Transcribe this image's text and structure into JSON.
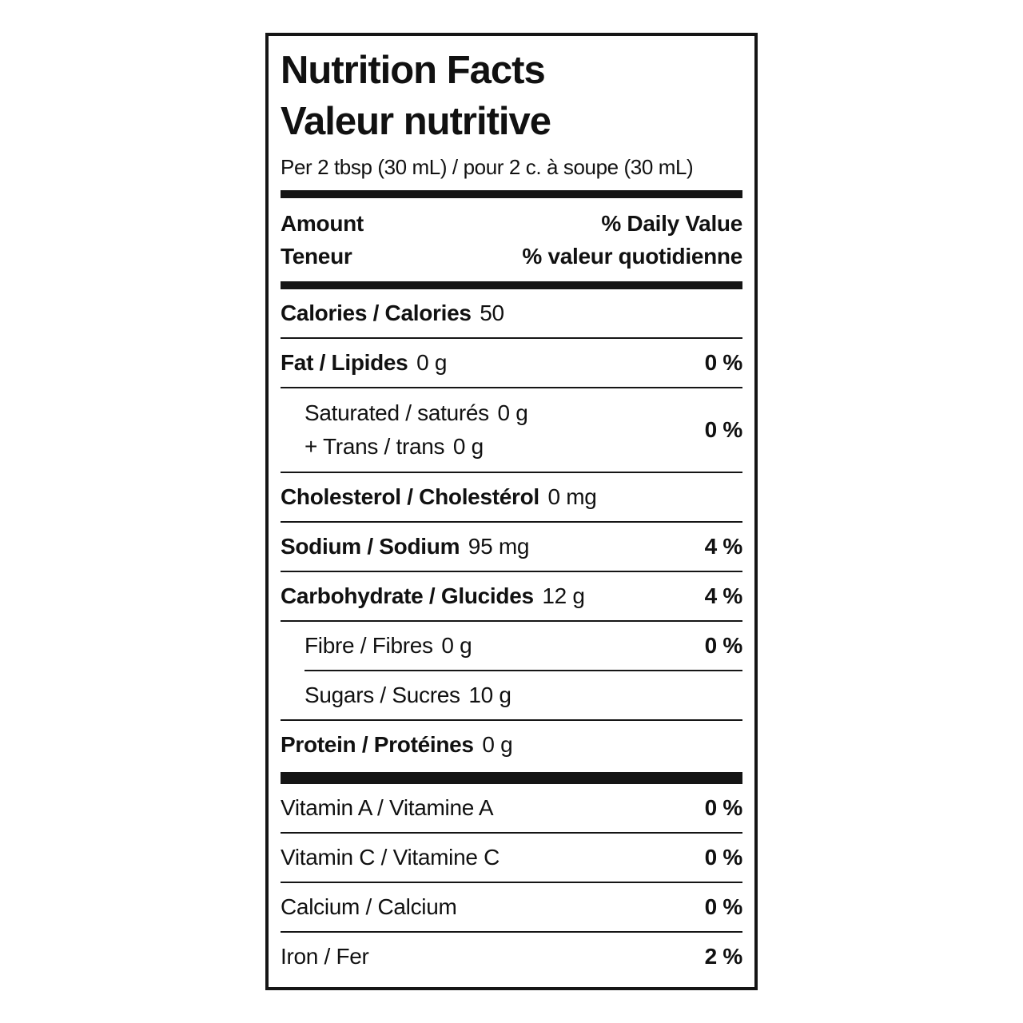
{
  "label": {
    "title_en": "Nutrition Facts",
    "title_fr": "Valeur nutritive",
    "serving": "Per 2 tbsp (30 mL) / pour 2 c. à soupe (30 mL)",
    "header": {
      "amount_en": "Amount",
      "amount_fr": "Teneur",
      "dv_en": "% Daily Value",
      "dv_fr": "% valeur quotidienne"
    },
    "rows": {
      "calories": {
        "name": "Calories / Calories",
        "amount": "50"
      },
      "fat": {
        "name": "Fat / Lipides",
        "amount": "0 g",
        "dv": "0 %"
      },
      "saturated_trans": {
        "line1_name": "Saturated / saturés",
        "line1_amount": "0 g",
        "line2_name": "+ Trans / trans",
        "line2_amount": "0 g",
        "dv": "0 %"
      },
      "cholesterol": {
        "name": "Cholesterol / Cholestérol",
        "amount": "0 mg"
      },
      "sodium": {
        "name": "Sodium / Sodium",
        "amount": "95 mg",
        "dv": "4 %"
      },
      "carbohydrate": {
        "name": "Carbohydrate / Glucides",
        "amount": "12 g",
        "dv": "4 %"
      },
      "fibre": {
        "name": "Fibre / Fibres",
        "amount": "0 g",
        "dv": "0 %"
      },
      "sugars": {
        "name": "Sugars / Sucres",
        "amount": "10 g"
      },
      "protein": {
        "name": "Protein / Protéines",
        "amount": "0 g"
      },
      "vitamin_a": {
        "name": "Vitamin A / Vitamine A",
        "dv": "0 %"
      },
      "vitamin_c": {
        "name": "Vitamin C / Vitamine C",
        "dv": "0 %"
      },
      "calcium": {
        "name": "Calcium / Calcium",
        "dv": "0 %"
      },
      "iron": {
        "name": "Iron / Fer",
        "dv": "2 %"
      }
    },
    "colors": {
      "text": "#111111",
      "rule": "#151515",
      "background": "#ffffff"
    }
  }
}
